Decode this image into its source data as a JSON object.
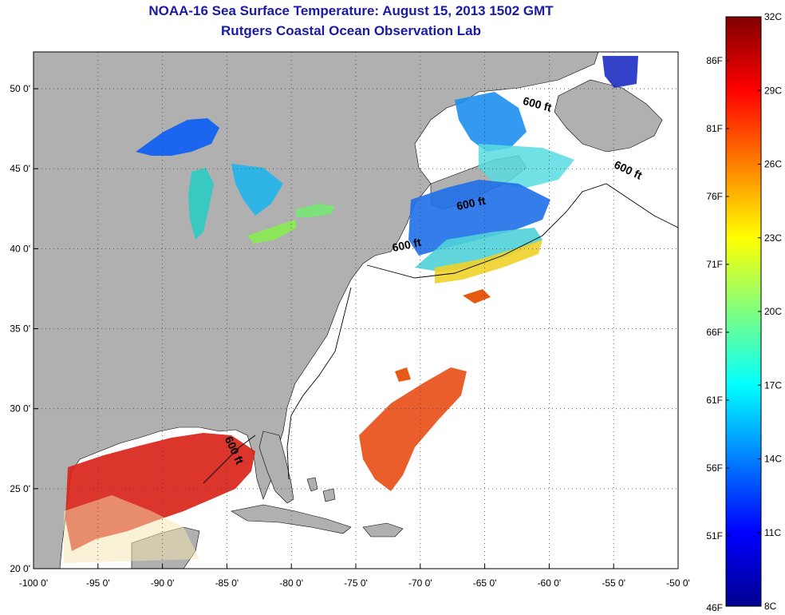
{
  "title": "NOAA-16 Sea Surface Temperature:  August 15, 2013 1502 GMT",
  "subtitle": "Rutgers Coastal Ocean Observation Lab",
  "map": {
    "lon_range": [
      -100,
      -50
    ],
    "lat_range": [
      20,
      52.3
    ],
    "x_ticks": [
      "-100 0'",
      "-95 0'",
      "-90 0'",
      "-85 0'",
      "-80 0'",
      "-75 0'",
      "-70 0'",
      "-65 0'",
      "-60 0'",
      "-55 0'",
      "-50 0'"
    ],
    "x_tick_values": [
      -100,
      -95,
      -90,
      -85,
      -80,
      -75,
      -70,
      -65,
      -60,
      -55,
      -50
    ],
    "y_ticks": [
      "20 0'",
      "25 0'",
      "30 0'",
      "35 0'",
      "40 0'",
      "45 0'",
      "50 0'"
    ],
    "y_tick_values": [
      20,
      25,
      30,
      35,
      40,
      45,
      50
    ],
    "grid": "dotted",
    "land_color": "#b0b0b0",
    "ocean_color": "#ffffff",
    "contour_labels": [
      {
        "text": "600 ft",
        "lon": -61,
        "lat": 48.8,
        "rotate": 15
      },
      {
        "text": "600 ft",
        "lon": -54,
        "lat": 44.7,
        "rotate": 25
      },
      {
        "text": "600 ft",
        "lon": -66,
        "lat": 42.6,
        "rotate": -12
      },
      {
        "text": "600 ft",
        "lon": -71,
        "lat": 40.0,
        "rotate": -12
      },
      {
        "text": "600 ft",
        "lon": -84.7,
        "lat": 27.3,
        "rotate": 65
      }
    ]
  },
  "colorbar": {
    "celsius": [
      "32C",
      "29C",
      "26C",
      "23C",
      "20C",
      "17C",
      "14C",
      "11C",
      "8C"
    ],
    "fahrenheit": [
      "86F",
      "81F",
      "76F",
      "71F",
      "66F",
      "61F",
      "56F",
      "51F",
      "46F"
    ],
    "c_range": [
      8,
      32
    ],
    "colors": [
      "#00008f",
      "#0000ff",
      "#0080ff",
      "#00ffff",
      "#80ff80",
      "#ffff00",
      "#ff8000",
      "#ff0000",
      "#800000"
    ]
  }
}
